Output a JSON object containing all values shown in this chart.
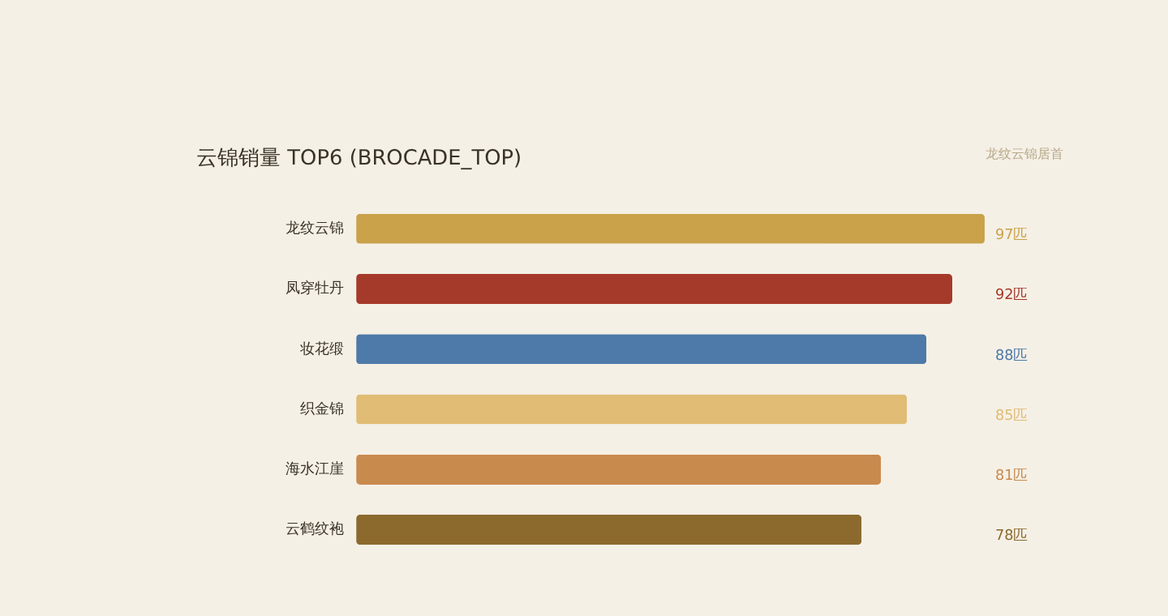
{
  "chart_data": {
    "type": "bar",
    "orientation": "horizontal",
    "title": "云锦销量 TOP6 (BROCADE_TOP)",
    "annotations": [
      "龙纹云锦居首"
    ],
    "categories": [
      "龙纹云锦",
      "凤穿牡丹",
      "妆花缎",
      "织金锦",
      "海水江崖",
      "云鹤纹袍"
    ],
    "values": [
      97,
      92,
      88,
      85,
      81,
      78
    ],
    "value_labels": [
      "97匹",
      "92匹",
      "88匹",
      "85匹",
      "81匹",
      "78匹"
    ],
    "colors": [
      "#c9a24a",
      "#a63a2a",
      "#4d7aa8",
      "#e0bc74",
      "#c98a4e",
      "#8c6a2e"
    ]
  }
}
